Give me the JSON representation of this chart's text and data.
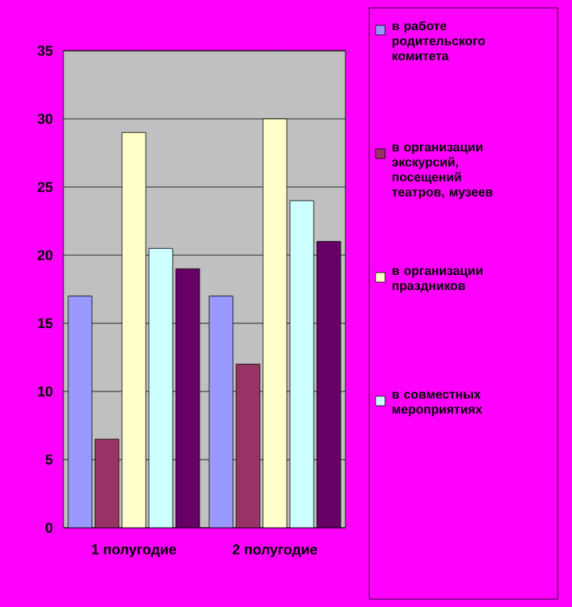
{
  "chart_data": {
    "type": "bar",
    "categories": [
      "1 полугодие",
      "2 полугодие"
    ],
    "series": [
      {
        "name": "в работе родительского комитета",
        "color": "#9999ff",
        "values": [
          17,
          17
        ]
      },
      {
        "name": "в организации экскурсий, посещений театров, музеев",
        "color": "#993366",
        "values": [
          6.5,
          12
        ]
      },
      {
        "name": "в организации праздников",
        "color": "#ffffcc",
        "values": [
          29,
          30
        ]
      },
      {
        "name": "в совместных мероприятиях",
        "color": "#ccffff",
        "values": [
          20.5,
          24
        ]
      },
      {
        "color": "#660066",
        "values": [
          19,
          21
        ]
      }
    ],
    "ylim": [
      0,
      35
    ],
    "yticks": [
      0,
      5,
      10,
      15,
      20,
      25,
      30,
      35
    ],
    "grid": "y",
    "legend": "right"
  }
}
